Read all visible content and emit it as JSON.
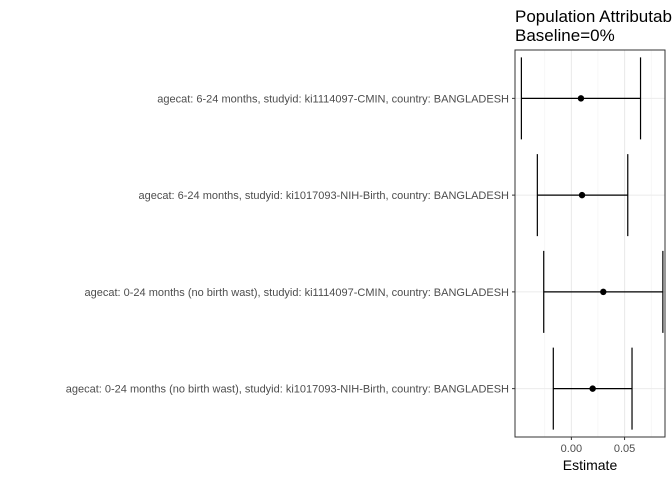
{
  "chart_data": {
    "type": "forest",
    "title_lines": [
      "Population Attributable Fraction",
      "Baseline=0%"
    ],
    "xlabel": "Estimate",
    "ylabel": "",
    "xlim": [
      -0.053,
      0.088
    ],
    "x_ticks": [
      {
        "value": 0.0,
        "label": "0.00"
      },
      {
        "value": 0.05,
        "label": "0.05"
      }
    ],
    "grid": true,
    "rows": [
      {
        "label": "agecat: 6-24 months, studyid: ki1114097-CMIN, country: BANGLADESH",
        "estimate": 0.009,
        "lower": -0.047,
        "upper": 0.065
      },
      {
        "label": "agecat: 6-24 months, studyid: ki1017093-NIH-Birth, country: BANGLADESH",
        "estimate": 0.01,
        "lower": -0.032,
        "upper": 0.053
      },
      {
        "label": "agecat: 0-24 months (no birth wast), studyid: ki1114097-CMIN, country: BANGLADESH",
        "estimate": 0.03,
        "lower": -0.026,
        "upper": 0.086
      },
      {
        "label": "agecat: 0-24 months (no birth wast), studyid: ki1017093-NIH-Birth, country: BANGLADESH",
        "estimate": 0.02,
        "lower": -0.017,
        "upper": 0.057
      }
    ]
  }
}
